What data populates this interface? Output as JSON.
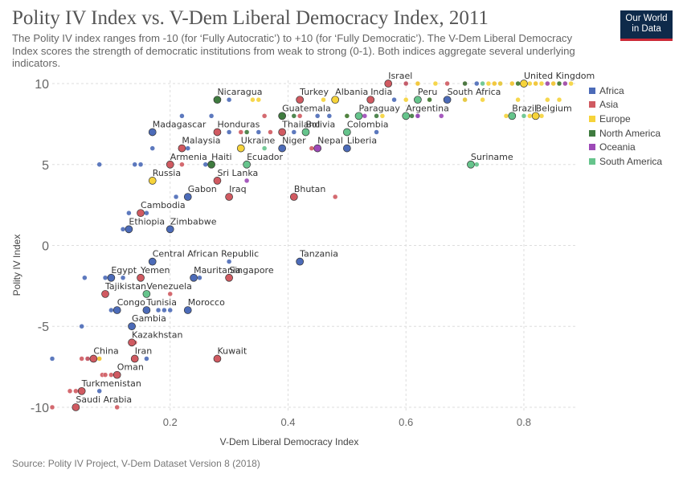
{
  "header": {
    "title": "Polity IV Index vs. V-Dem Liberal Democracy Index, 2011",
    "subtitle": "The Polity IV index ranges from -10 (for ‘Fully Autocratic’) to +10 (for ‘Fully Democratic’). The V-Dem Liberal Democracy Index scores the strength of democratic institutions from weak to strong (0-1). Both indices aggregate several underlying indicators.",
    "logo_line1": "Our World",
    "logo_line2": "in Data"
  },
  "footer": {
    "source": "Source: Polity IV Project, V-Dem Dataset Version 8 (2018)"
  },
  "colors": {
    "Africa": "#4c6bb8",
    "Asia": "#d05a61",
    "Europe": "#f6d33a",
    "North America": "#3f7b3f",
    "Oceania": "#9d49b7",
    "South America": "#66c48c"
  },
  "chart_data": {
    "type": "scatter",
    "xlabel": "V-Dem Liberal Democracy Index",
    "ylabel": "Polity IV Index",
    "xlim": [
      0.0,
      0.89
    ],
    "ylim": [
      -10.3,
      10.2
    ],
    "x_ticks": [
      0.2,
      0.4,
      0.6,
      0.8
    ],
    "x_tick_labels": [
      "0.2",
      "0.4",
      "0.6",
      "0.8"
    ],
    "y_ticks": [
      -10,
      -5,
      0,
      5,
      10
    ],
    "y_tick_labels": [
      "-10",
      "-5",
      "0",
      "5",
      "10"
    ],
    "grid": true,
    "legend_position": "right",
    "series": [
      {
        "name": "Africa",
        "points": [
          [
            0.0,
            -7
          ],
          [
            0.06,
            -7
          ],
          [
            0.08,
            -9
          ],
          [
            0.05,
            -5
          ],
          [
            0.055,
            -2
          ],
          [
            0.09,
            -2
          ],
          [
            0.12,
            -2
          ],
          [
            0.1,
            -4
          ],
          [
            0.135,
            -5
          ],
          [
            0.16,
            -7
          ],
          [
            0.18,
            -4
          ],
          [
            0.19,
            -4
          ],
          [
            0.2,
            -4
          ],
          [
            0.24,
            -2
          ],
          [
            0.25,
            -2
          ],
          [
            0.17,
            -1
          ],
          [
            0.3,
            -1
          ],
          [
            0.12,
            1
          ],
          [
            0.2,
            1
          ],
          [
            0.13,
            2
          ],
          [
            0.16,
            2
          ],
          [
            0.21,
            3
          ],
          [
            0.14,
            5
          ],
          [
            0.15,
            5
          ],
          [
            0.17,
            6
          ],
          [
            0.23,
            6
          ],
          [
            0.26,
            5
          ],
          [
            0.3,
            7
          ],
          [
            0.35,
            7
          ],
          [
            0.22,
            8
          ],
          [
            0.27,
            8
          ],
          [
            0.39,
            8
          ],
          [
            0.41,
            7
          ],
          [
            0.43,
            7
          ],
          [
            0.45,
            8
          ],
          [
            0.47,
            8
          ],
          [
            0.5,
            6
          ],
          [
            0.55,
            7
          ],
          [
            0.58,
            9
          ],
          [
            0.6,
            10
          ],
          [
            0.62,
            8
          ],
          [
            0.67,
            9
          ],
          [
            0.7,
            9
          ],
          [
            0.72,
            10
          ],
          [
            0.76,
            10
          ],
          [
            0.08,
            5
          ],
          [
            0.3,
            9
          ],
          [
            0.42,
            -1
          ],
          [
            0.2,
            1
          ],
          [
            0.23,
            -4
          ]
        ]
      },
      {
        "name": "Asia",
        "points": [
          [
            0.0,
            -10
          ],
          [
            0.04,
            -9
          ],
          [
            0.05,
            -7
          ],
          [
            0.06,
            -7
          ],
          [
            0.07,
            -7
          ],
          [
            0.08,
            -7
          ],
          [
            0.085,
            -8
          ],
          [
            0.09,
            -8
          ],
          [
            0.09,
            -3
          ],
          [
            0.1,
            -8
          ],
          [
            0.11,
            -10
          ],
          [
            0.14,
            -7
          ],
          [
            0.14,
            -6
          ],
          [
            0.15,
            -2
          ],
          [
            0.2,
            -3
          ],
          [
            0.2,
            5
          ],
          [
            0.22,
            5
          ],
          [
            0.22,
            6
          ],
          [
            0.28,
            -7
          ],
          [
            0.28,
            7
          ],
          [
            0.3,
            -2
          ],
          [
            0.3,
            3
          ],
          [
            0.32,
            7
          ],
          [
            0.32,
            6
          ],
          [
            0.37,
            7
          ],
          [
            0.39,
            6
          ],
          [
            0.42,
            8
          ],
          [
            0.44,
            6
          ],
          [
            0.48,
            3
          ],
          [
            0.5,
            7
          ],
          [
            0.54,
            9
          ],
          [
            0.57,
            10
          ],
          [
            0.6,
            10
          ],
          [
            0.62,
            10
          ],
          [
            0.67,
            10
          ],
          [
            0.7,
            10
          ],
          [
            0.75,
            10
          ],
          [
            0.78,
            10
          ],
          [
            0.82,
            10
          ],
          [
            0.85,
            10
          ],
          [
            0.36,
            8
          ],
          [
            0.03,
            -9
          ]
        ]
      },
      {
        "name": "Europe",
        "points": [
          [
            0.08,
            -7
          ],
          [
            0.17,
            4
          ],
          [
            0.32,
            6
          ],
          [
            0.34,
            9
          ],
          [
            0.35,
            9
          ],
          [
            0.46,
            9
          ],
          [
            0.5,
            8
          ],
          [
            0.56,
            8
          ],
          [
            0.6,
            9
          ],
          [
            0.62,
            10
          ],
          [
            0.64,
            9
          ],
          [
            0.67,
            9
          ],
          [
            0.7,
            9
          ],
          [
            0.73,
            9
          ],
          [
            0.74,
            10
          ],
          [
            0.75,
            10
          ],
          [
            0.77,
            8
          ],
          [
            0.78,
            10
          ],
          [
            0.79,
            10
          ],
          [
            0.8,
            10
          ],
          [
            0.81,
            10
          ],
          [
            0.81,
            8
          ],
          [
            0.82,
            10
          ],
          [
            0.83,
            8
          ],
          [
            0.83,
            10
          ],
          [
            0.84,
            10
          ],
          [
            0.85,
            10
          ],
          [
            0.86,
            9
          ],
          [
            0.86,
            10
          ],
          [
            0.87,
            10
          ],
          [
            0.88,
            10
          ],
          [
            0.8,
            10
          ],
          [
            0.76,
            10
          ],
          [
            0.65,
            10
          ],
          [
            0.79,
            9
          ],
          [
            0.84,
            9
          ]
        ]
      },
      {
        "name": "North America",
        "points": [
          [
            0.28,
            9
          ],
          [
            0.33,
            7
          ],
          [
            0.41,
            8
          ],
          [
            0.5,
            8
          ],
          [
            0.55,
            8
          ],
          [
            0.61,
            8
          ],
          [
            0.64,
            9
          ],
          [
            0.7,
            10
          ],
          [
            0.79,
            10
          ],
          [
            0.86,
            10
          ]
        ]
      },
      {
        "name": "Oceania",
        "points": [
          [
            0.11,
            -4
          ],
          [
            0.33,
            4
          ],
          [
            0.45,
            6
          ],
          [
            0.53,
            8
          ],
          [
            0.62,
            8
          ],
          [
            0.66,
            8
          ],
          [
            0.84,
            10
          ],
          [
            0.87,
            10
          ]
        ]
      },
      {
        "name": "South America",
        "points": [
          [
            0.16,
            -3
          ],
          [
            0.39,
            8
          ],
          [
            0.36,
            6
          ],
          [
            0.52,
            8
          ],
          [
            0.6,
            8
          ],
          [
            0.72,
            5
          ],
          [
            0.78,
            8
          ],
          [
            0.8,
            8
          ],
          [
            0.73,
            10
          ]
        ]
      }
    ],
    "labels": [
      {
        "text": "Nicaragua",
        "x": 0.28,
        "y": 9,
        "color": "#3f7b3f"
      },
      {
        "text": "Turkey",
        "x": 0.42,
        "y": 9,
        "color": "#d05a61"
      },
      {
        "text": "Albania",
        "x": 0.48,
        "y": 9,
        "color": "#f6d33a"
      },
      {
        "text": "India",
        "x": 0.54,
        "y": 9,
        "color": "#d05a61"
      },
      {
        "text": "Israel",
        "x": 0.57,
        "y": 10,
        "color": "#d05a61"
      },
      {
        "text": "Peru",
        "x": 0.62,
        "y": 9,
        "color": "#66c48c"
      },
      {
        "text": "South Africa",
        "x": 0.67,
        "y": 9,
        "color": "#4c6bb8"
      },
      {
        "text": "United Kingdom",
        "x": 0.8,
        "y": 10,
        "color": "#f6d33a"
      },
      {
        "text": "Guatemala",
        "x": 0.39,
        "y": 8,
        "color": "#3f7b3f"
      },
      {
        "text": "Paraguay",
        "x": 0.52,
        "y": 8,
        "color": "#66c48c"
      },
      {
        "text": "Argentina",
        "x": 0.6,
        "y": 8,
        "color": "#66c48c"
      },
      {
        "text": "Brazil",
        "x": 0.78,
        "y": 8,
        "color": "#66c48c"
      },
      {
        "text": "Belgium",
        "x": 0.82,
        "y": 8,
        "color": "#f6d33a"
      },
      {
        "text": "Madagascar",
        "x": 0.17,
        "y": 7,
        "color": "#4c6bb8"
      },
      {
        "text": "Honduras",
        "x": 0.28,
        "y": 7,
        "color": "#d05a61"
      },
      {
        "text": "Thailand",
        "x": 0.39,
        "y": 7,
        "color": "#d05a61"
      },
      {
        "text": "Bolivia",
        "x": 0.43,
        "y": 7,
        "color": "#66c48c"
      },
      {
        "text": "Colombia",
        "x": 0.5,
        "y": 7,
        "color": "#66c48c"
      },
      {
        "text": "Malaysia",
        "x": 0.22,
        "y": 6,
        "color": "#d05a61"
      },
      {
        "text": "Ukraine",
        "x": 0.32,
        "y": 6,
        "color": "#f6d33a"
      },
      {
        "text": "Niger",
        "x": 0.39,
        "y": 6,
        "color": "#4c6bb8"
      },
      {
        "text": "Nepal",
        "x": 0.45,
        "y": 6,
        "color": "#9d49b7"
      },
      {
        "text": "Liberia",
        "x": 0.5,
        "y": 6,
        "color": "#4c6bb8"
      },
      {
        "text": "Armenia",
        "x": 0.2,
        "y": 5,
        "color": "#d05a61"
      },
      {
        "text": "Haiti",
        "x": 0.27,
        "y": 5,
        "color": "#3f7b3f"
      },
      {
        "text": "Ecuador",
        "x": 0.33,
        "y": 5,
        "color": "#66c48c"
      },
      {
        "text": "Suriname",
        "x": 0.71,
        "y": 5,
        "color": "#66c48c"
      },
      {
        "text": "Russia",
        "x": 0.17,
        "y": 4,
        "color": "#f6d33a"
      },
      {
        "text": "Sri Lanka",
        "x": 0.28,
        "y": 4,
        "color": "#d05a61"
      },
      {
        "text": "Gabon",
        "x": 0.23,
        "y": 3,
        "color": "#4c6bb8"
      },
      {
        "text": "Iraq",
        "x": 0.3,
        "y": 3,
        "color": "#d05a61"
      },
      {
        "text": "Bhutan",
        "x": 0.41,
        "y": 3,
        "color": "#d05a61"
      },
      {
        "text": "Cambodia",
        "x": 0.15,
        "y": 2,
        "color": "#d05a61"
      },
      {
        "text": "Ethiopia",
        "x": 0.13,
        "y": 1,
        "color": "#4c6bb8"
      },
      {
        "text": "Zimbabwe",
        "x": 0.2,
        "y": 1,
        "color": "#4c6bb8"
      },
      {
        "text": "Central African Republic",
        "x": 0.17,
        "y": -1,
        "color": "#4c6bb8"
      },
      {
        "text": "Tanzania",
        "x": 0.42,
        "y": -1,
        "color": "#4c6bb8"
      },
      {
        "text": "Egypt",
        "x": 0.1,
        "y": -2,
        "color": "#4c6bb8"
      },
      {
        "text": "Yemen",
        "x": 0.15,
        "y": -2,
        "color": "#d05a61"
      },
      {
        "text": "Mauritania",
        "x": 0.24,
        "y": -2,
        "color": "#4c6bb8"
      },
      {
        "text": "Singapore",
        "x": 0.3,
        "y": -2,
        "color": "#d05a61"
      },
      {
        "text": "Tajikistan",
        "x": 0.09,
        "y": -3,
        "color": "#d05a61"
      },
      {
        "text": "Venezuela",
        "x": 0.16,
        "y": -3,
        "color": "#66c48c"
      },
      {
        "text": "Congo",
        "x": 0.11,
        "y": -4,
        "color": "#4c6bb8"
      },
      {
        "text": "Tunisia",
        "x": 0.16,
        "y": -4,
        "color": "#4c6bb8"
      },
      {
        "text": "Morocco",
        "x": 0.23,
        "y": -4,
        "color": "#4c6bb8"
      },
      {
        "text": "Gambia",
        "x": 0.135,
        "y": -5,
        "color": "#4c6bb8"
      },
      {
        "text": "Kazakhstan",
        "x": 0.135,
        "y": -6,
        "color": "#d05a61"
      },
      {
        "text": "China",
        "x": 0.07,
        "y": -7,
        "color": "#d05a61"
      },
      {
        "text": "Iran",
        "x": 0.14,
        "y": -7,
        "color": "#d05a61"
      },
      {
        "text": "Kuwait",
        "x": 0.28,
        "y": -7,
        "color": "#d05a61"
      },
      {
        "text": "Oman",
        "x": 0.11,
        "y": -8,
        "color": "#d05a61"
      },
      {
        "text": "Turkmenistan",
        "x": 0.05,
        "y": -9,
        "color": "#d05a61"
      },
      {
        "text": "Saudi Arabia",
        "x": 0.04,
        "y": -10,
        "color": "#d05a61"
      }
    ]
  }
}
